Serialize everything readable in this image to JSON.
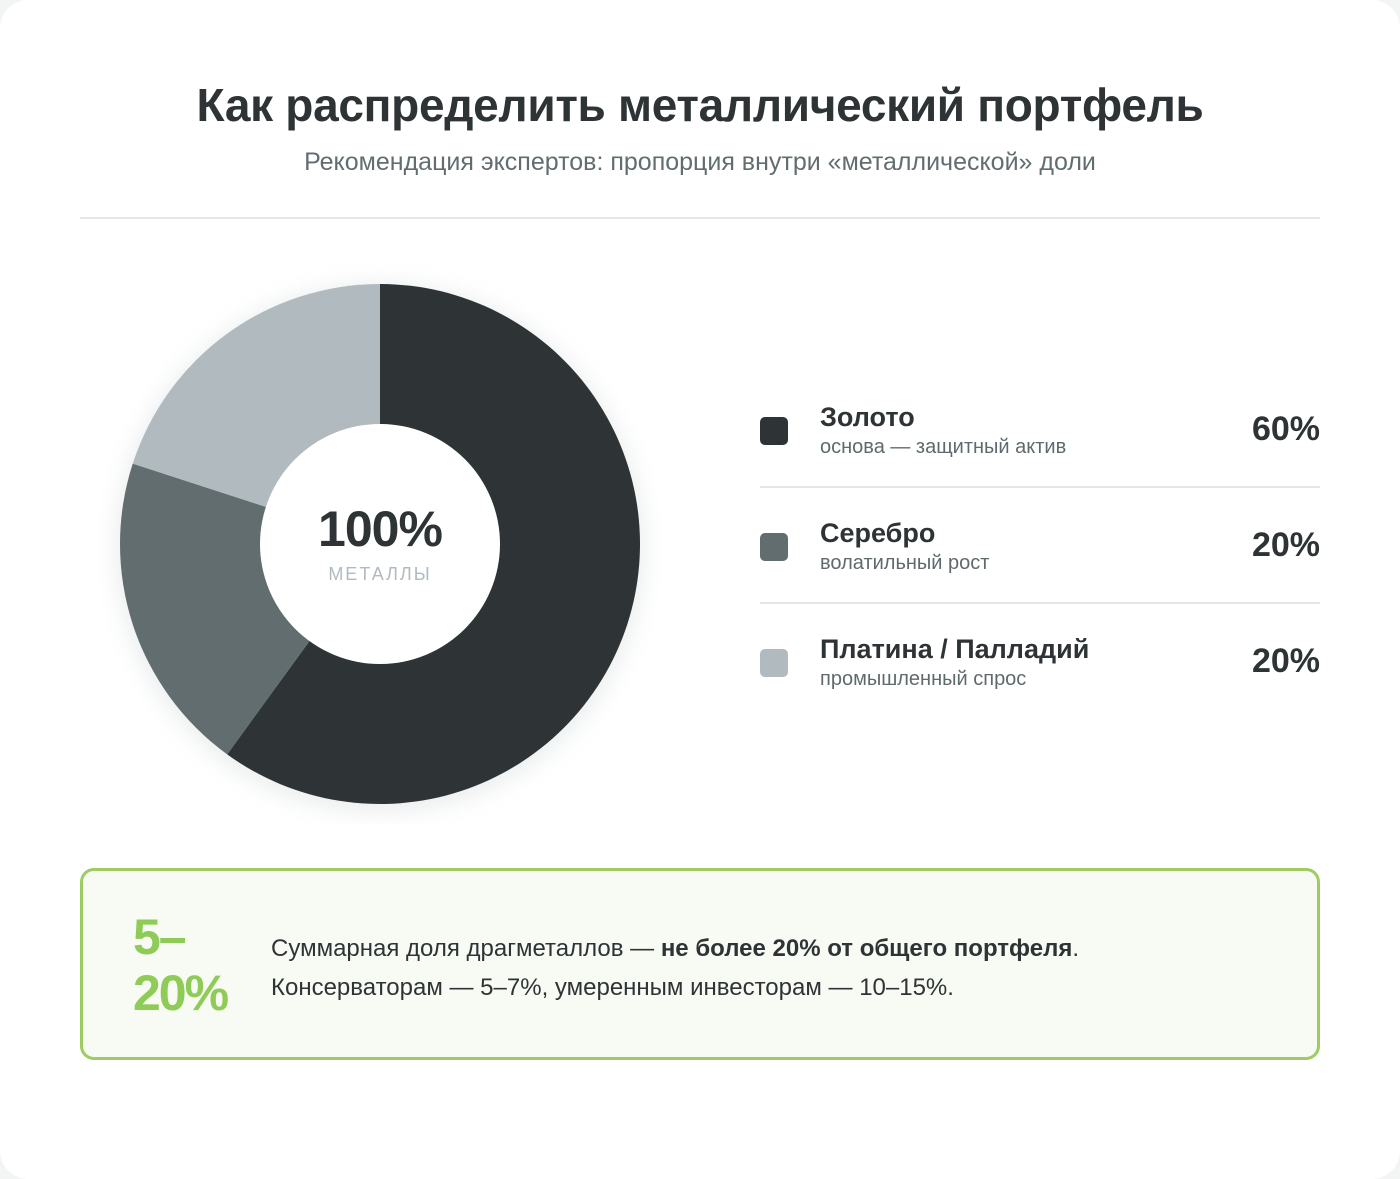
{
  "header": {
    "title": "Как распределить металлический портфель",
    "subtitle": "Рекомендация экспертов: пропорция внутри «металлической» доли"
  },
  "chart_data": {
    "type": "pie",
    "variant": "donut",
    "categories": [
      "Золото",
      "Серебро",
      "Платина / Палладий"
    ],
    "values": [
      60,
      20,
      20
    ],
    "colors": [
      "#2e3436",
      "#626d70",
      "#b1babf"
    ],
    "center_value": "100%",
    "center_label": "МЕТАЛЛЫ",
    "legend_position": "right"
  },
  "legend": {
    "items": [
      {
        "name": "Золото",
        "description": "основа — защитный актив",
        "value": "60%",
        "color": "#2e3436"
      },
      {
        "name": "Серебро",
        "description": "волатильный рост",
        "value": "20%",
        "color": "#626d70"
      },
      {
        "name": "Платина / Палладий",
        "description": "промышленный спрос",
        "value": "20%",
        "color": "#b1babf"
      }
    ]
  },
  "note": {
    "big_value_line1": "5–",
    "big_value_line2": "20%",
    "text_part1": "Суммарная доля драгметаллов — ",
    "text_bold": "не более 20% от общего портфеля",
    "text_part2": ".",
    "text_line2": "Консерваторам — 5–7%, умеренным инвесторам — 10–15%.",
    "accent_color": "#8fcb57"
  }
}
